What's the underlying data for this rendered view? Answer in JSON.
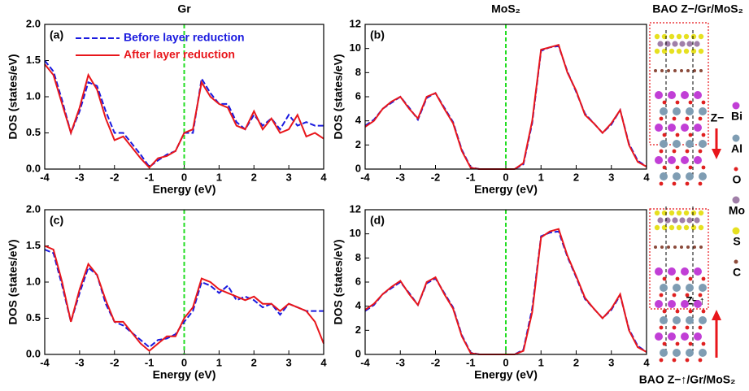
{
  "chart_data": [
    {
      "type": "line",
      "title": "Gr",
      "panel_label": "(a)",
      "xlabel": "Energy (eV)",
      "ylabel": "DOS (states/eV)",
      "xlim": [
        -4,
        4
      ],
      "xticks": [
        -4,
        -3,
        -2,
        -1,
        0,
        1,
        2,
        3,
        4
      ],
      "ylim": [
        0,
        2
      ],
      "yticks": [
        {
          "value": 0,
          "label": "0.0"
        },
        0.5,
        {
          "value": 1,
          "label": "1.0"
        },
        1.5,
        {
          "value": 2,
          "label": "2.0"
        }
      ],
      "vline": 0,
      "vline_color": "#22dd22",
      "legend": "upper left",
      "x": [
        -4,
        -3.75,
        -3.5,
        -3.25,
        -3,
        -2.75,
        -2.5,
        -2.25,
        -2,
        -1.75,
        -1.5,
        -1.25,
        -1,
        -0.75,
        -0.5,
        -0.25,
        0,
        0.25,
        0.5,
        0.75,
        1,
        1.25,
        1.5,
        1.75,
        2,
        2.25,
        2.5,
        2.75,
        3,
        3.25,
        3.5,
        3.75,
        4
      ],
      "series": [
        {
          "name": "Before layer reduction",
          "color": "#1a1adf",
          "style": "dashed",
          "values": [
            1.5,
            1.35,
            0.95,
            0.5,
            0.8,
            1.2,
            1.15,
            0.8,
            0.5,
            0.5,
            0.35,
            0.2,
            0.03,
            0.12,
            0.2,
            0.25,
            0.5,
            0.5,
            1.25,
            1.05,
            0.9,
            0.9,
            0.65,
            0.55,
            0.75,
            0.6,
            0.7,
            0.55,
            0.75,
            0.6,
            0.65,
            0.6,
            0.6
          ]
        },
        {
          "name": "After layer reduction",
          "color": "#e8161b",
          "style": "solid",
          "values": [
            1.45,
            1.3,
            0.9,
            0.5,
            0.85,
            1.3,
            1.1,
            0.7,
            0.4,
            0.45,
            0.3,
            0.15,
            0.02,
            0.15,
            0.18,
            0.25,
            0.5,
            0.55,
            1.2,
            1.0,
            0.9,
            0.85,
            0.6,
            0.55,
            0.8,
            0.55,
            0.7,
            0.5,
            0.55,
            0.75,
            0.45,
            0.5,
            0.42
          ]
        }
      ]
    },
    {
      "type": "line",
      "title": "MoS₂",
      "panel_label": "(b)",
      "xlabel": "Energy (eV)",
      "ylabel": "DOS (states/eV)",
      "xlim": [
        -4,
        4
      ],
      "xticks": [
        -4,
        -3,
        -2,
        -1,
        0,
        1,
        2,
        3,
        4
      ],
      "ylim": [
        0,
        12
      ],
      "yticks": [
        0,
        2,
        4,
        6,
        8,
        10,
        12
      ],
      "vline": 0,
      "vline_color": "#22dd22",
      "x": [
        -4,
        -3.75,
        -3.5,
        -3.25,
        -3,
        -2.75,
        -2.5,
        -2.25,
        -2,
        -1.75,
        -1.5,
        -1.25,
        -1,
        -0.75,
        -0.5,
        -0.25,
        0,
        0.25,
        0.5,
        0.75,
        1,
        1.25,
        1.5,
        1.75,
        2,
        2.25,
        2.5,
        2.75,
        3,
        3.25,
        3.5,
        3.75,
        4
      ],
      "series": [
        {
          "color": "#1a1adf",
          "style": "dashed",
          "values": [
            3.6,
            4.1,
            5,
            5.5,
            6,
            5.1,
            4.1,
            5.9,
            6.3,
            5.1,
            3.9,
            1.6,
            0.15,
            0,
            0,
            0,
            0,
            0,
            0.4,
            3.8,
            9.8,
            10.1,
            10.2,
            8.1,
            6.4,
            4.6,
            3.8,
            3,
            3.7,
            4.9,
            2.1,
            0.7,
            0.2
          ]
        },
        {
          "color": "#e8161b",
          "style": "solid",
          "values": [
            3.5,
            4,
            5,
            5.6,
            6,
            5,
            4.2,
            6,
            6.3,
            5,
            3.8,
            1.5,
            0.1,
            0,
            0,
            0,
            0,
            0,
            0.5,
            4,
            9.9,
            10.1,
            10.3,
            8,
            6.5,
            4.5,
            3.8,
            3,
            3.8,
            4.9,
            2,
            0.6,
            0.2
          ]
        }
      ]
    },
    {
      "type": "line",
      "panel_label": "(c)",
      "xlabel": "Energy (eV)",
      "ylabel": "DOS (states/eV)",
      "xlim": [
        -4,
        4
      ],
      "xticks": [
        -4,
        -3,
        -2,
        -1,
        0,
        1,
        2,
        3,
        4
      ],
      "ylim": [
        0,
        2
      ],
      "yticks": [
        {
          "value": 0,
          "label": "0.0"
        },
        0.5,
        {
          "value": 1,
          "label": "1.0"
        },
        1.5,
        {
          "value": 2,
          "label": "2.0"
        }
      ],
      "vline": 0,
      "vline_color": "#22dd22",
      "x": [
        -4,
        -3.75,
        -3.5,
        -3.25,
        -3,
        -2.75,
        -2.5,
        -2.25,
        -2,
        -1.75,
        -1.5,
        -1.25,
        -1,
        -0.75,
        -0.5,
        -0.25,
        0,
        0.25,
        0.5,
        0.75,
        1,
        1.25,
        1.5,
        1.75,
        2,
        2.25,
        2.5,
        2.75,
        3,
        3.25,
        3.5,
        3.75,
        4
      ],
      "series": [
        {
          "color": "#1a1adf",
          "style": "dashed",
          "values": [
            1.45,
            1.4,
            0.95,
            0.45,
            0.85,
            1.2,
            1.1,
            0.7,
            0.45,
            0.4,
            0.3,
            0.2,
            0.1,
            0.2,
            0.22,
            0.28,
            0.45,
            0.6,
            1.0,
            0.95,
            0.85,
            0.95,
            0.75,
            0.8,
            0.75,
            0.65,
            0.7,
            0.55,
            0.7,
            0.65,
            0.6,
            0.6,
            0.6
          ]
        },
        {
          "color": "#e8161b",
          "style": "solid",
          "values": [
            1.5,
            1.45,
            1.0,
            0.45,
            0.9,
            1.25,
            1.1,
            0.75,
            0.45,
            0.45,
            0.3,
            0.15,
            0.05,
            0.15,
            0.25,
            0.25,
            0.5,
            0.65,
            1.05,
            1.0,
            0.9,
            0.85,
            0.8,
            0.75,
            0.8,
            0.7,
            0.7,
            0.6,
            0.7,
            0.65,
            0.6,
            0.45,
            0.15
          ]
        }
      ]
    },
    {
      "type": "line",
      "panel_label": "(d)",
      "xlabel": "Energy (eV)",
      "ylabel": "DOS (states/eV)",
      "xlim": [
        -4,
        4
      ],
      "xticks": [
        -4,
        -3,
        -2,
        -1,
        0,
        1,
        2,
        3,
        4
      ],
      "ylim": [
        0,
        12
      ],
      "yticks": [
        0,
        2,
        4,
        6,
        8,
        10,
        12
      ],
      "vline": 0,
      "vline_color": "#22dd22",
      "x": [
        -4,
        -3.75,
        -3.5,
        -3.25,
        -3,
        -2.75,
        -2.5,
        -2.25,
        -2,
        -1.75,
        -1.5,
        -1.25,
        -1,
        -0.75,
        -0.5,
        -0.25,
        0,
        0.25,
        0.5,
        0.75,
        1,
        1.25,
        1.5,
        1.75,
        2,
        2.25,
        2.5,
        2.75,
        3,
        3.25,
        3.5,
        3.75,
        4
      ],
      "series": [
        {
          "color": "#1a1adf",
          "style": "dashed",
          "values": [
            3.6,
            4.1,
            5,
            5.5,
            6,
            5.1,
            4.1,
            5.9,
            6.3,
            5.1,
            3.9,
            1.6,
            0.15,
            0,
            0,
            0,
            0,
            0,
            0.4,
            3.8,
            9.8,
            10.1,
            10.2,
            8.1,
            6.4,
            4.6,
            3.8,
            3,
            3.7,
            4.9,
            2.1,
            0.7,
            0.2
          ]
        },
        {
          "color": "#e8161b",
          "style": "solid",
          "values": [
            3.7,
            4.2,
            5,
            5.6,
            6.1,
            5,
            4.1,
            6,
            6.4,
            5,
            3.8,
            1.5,
            0.1,
            0,
            0,
            0,
            0,
            0,
            0.3,
            3.5,
            9.7,
            10.2,
            10.4,
            8.2,
            6.5,
            4.7,
            3.8,
            3,
            3.8,
            5,
            2,
            0.6,
            0.2
          ]
        }
      ]
    }
  ],
  "structure": {
    "top_title": "BAO Z−/Gr/MoS₂",
    "bottom_title": "BAO Z−↑/Gr/MoS₂",
    "top_label": "Z−",
    "bottom_label": "Z−↑",
    "atoms": [
      "Bi",
      "Al",
      "O",
      "Mo",
      "S",
      "C"
    ]
  }
}
